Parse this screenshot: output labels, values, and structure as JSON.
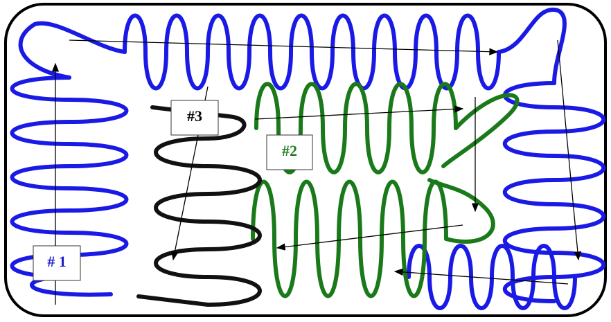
{
  "labels": {
    "one": "# 1",
    "two": "#2",
    "three": "#3"
  }
}
